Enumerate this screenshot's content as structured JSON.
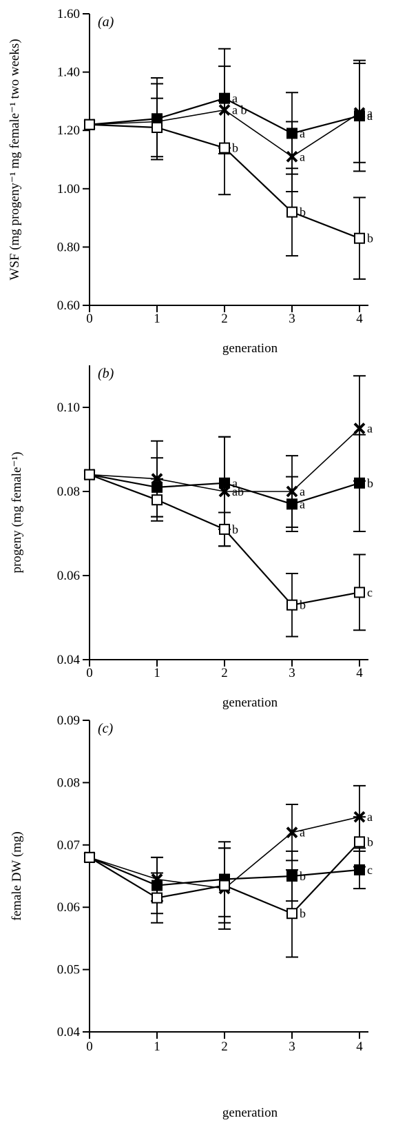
{
  "chart_data": [
    {
      "type": "line",
      "panel": "(a)",
      "xlabel": "generation",
      "ylabel": "WSF (mg progeny⁻¹ mg female⁻¹ two weeks)",
      "x": [
        0,
        1,
        2,
        3,
        4
      ],
      "x_ticks": [
        "0",
        "1",
        "2",
        "3",
        "4"
      ],
      "ylim": [
        0.6,
        1.6
      ],
      "y_ticks": [
        "0.60",
        "0.80",
        "1.00",
        "1.20",
        "1.40",
        "1.60"
      ],
      "series": [
        {
          "marker": "filled-square",
          "values": [
            1.22,
            1.24,
            1.31,
            1.19,
            1.25
          ],
          "err": [
            0,
            0.14,
            0.17,
            0.14,
            0.19
          ],
          "letters": [
            "",
            "",
            "a",
            "a",
            "a"
          ]
        },
        {
          "marker": "cross",
          "values": [
            1.22,
            1.23,
            1.27,
            1.11,
            1.26
          ],
          "err": [
            0,
            0.13,
            0.15,
            0.12,
            0.17
          ],
          "letters": [
            "",
            "",
            "a b",
            "a",
            "a"
          ]
        },
        {
          "marker": "open-square",
          "values": [
            1.22,
            1.21,
            1.14,
            0.92,
            0.83
          ],
          "err": [
            0,
            0.1,
            0.16,
            0.15,
            0.14
          ],
          "letters": [
            "",
            "",
            "b",
            "b",
            "b"
          ]
        }
      ]
    },
    {
      "type": "line",
      "panel": "(b)",
      "xlabel": "generation",
      "ylabel": "progeny (mg female⁻¹)",
      "x": [
        0,
        1,
        2,
        3,
        4
      ],
      "x_ticks": [
        "0",
        "1",
        "2",
        "3",
        "4"
      ],
      "ylim": [
        0.04,
        0.11
      ],
      "y_ticks": [
        "0.04",
        "0.06",
        "0.08",
        "0.10"
      ],
      "series": [
        {
          "marker": "filled-square",
          "values": [
            0.084,
            0.081,
            0.082,
            0.077,
            0.082
          ],
          "err": [
            0,
            0.007,
            0.011,
            0.0065,
            0.0115
          ],
          "letters": [
            "",
            "",
            "a",
            "a",
            "b"
          ]
        },
        {
          "marker": "cross",
          "values": [
            0.084,
            0.083,
            0.08,
            0.08,
            0.095
          ],
          "err": [
            0,
            0.009,
            0.013,
            0.0085,
            0.0125
          ],
          "letters": [
            "",
            "",
            "ab",
            "a",
            "a"
          ]
        },
        {
          "marker": "open-square",
          "values": [
            0.084,
            0.078,
            0.071,
            0.053,
            0.056
          ],
          "err": [
            0,
            0.005,
            0.004,
            0.0075,
            0.009
          ],
          "letters": [
            "",
            "",
            "b",
            "b",
            "c"
          ]
        }
      ]
    },
    {
      "type": "line",
      "panel": "(c)",
      "xlabel": "generation",
      "ylabel": "female DW (mg)",
      "x": [
        0,
        1,
        2,
        3,
        4
      ],
      "x_ticks": [
        "0",
        "1",
        "2",
        "3",
        "4"
      ],
      "ylim": [
        0.04,
        0.09
      ],
      "y_ticks": [
        "0.04",
        "0.05",
        "0.06",
        "0.07",
        "0.08",
        "0.09"
      ],
      "series": [
        {
          "marker": "filled-square",
          "values": [
            0.068,
            0.0635,
            0.0645,
            0.065,
            0.066
          ],
          "err": [
            0,
            0.0045,
            0.006,
            0.004,
            0.003
          ],
          "letters": [
            "",
            "",
            "",
            "b",
            "c"
          ]
        },
        {
          "marker": "cross",
          "values": [
            0.068,
            0.0645,
            0.063,
            0.072,
            0.0745
          ],
          "err": [
            0,
            0.0035,
            0.0065,
            0.0045,
            0.005
          ],
          "letters": [
            "",
            "",
            "",
            "a",
            "a"
          ]
        },
        {
          "marker": "open-square",
          "values": [
            0.068,
            0.0615,
            0.0635,
            0.059,
            0.0705
          ],
          "err": [
            0,
            0.004,
            0.006,
            0.007,
            0.004
          ],
          "letters": [
            "",
            "",
            "",
            "b",
            "b"
          ]
        }
      ]
    }
  ]
}
